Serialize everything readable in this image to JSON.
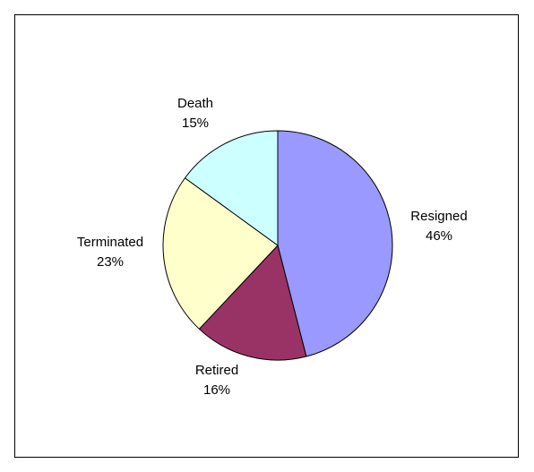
{
  "chart_data": {
    "type": "pie",
    "title": "",
    "start": "12 o'clock, clockwise",
    "slices": [
      {
        "label": "Resigned",
        "value": 46,
        "value_label": "46%",
        "color": "#9999ff"
      },
      {
        "label": "Retired",
        "value": 16,
        "value_label": "16%",
        "color": "#993366"
      },
      {
        "label": "Terminated",
        "value": 23,
        "value_label": "23%",
        "color": "#ffffcc"
      },
      {
        "label": "Death",
        "value": 15,
        "value_label": "15%",
        "color": "#ccffff"
      }
    ],
    "legend": "none",
    "data_labels": "category name and percentage outside slices"
  }
}
